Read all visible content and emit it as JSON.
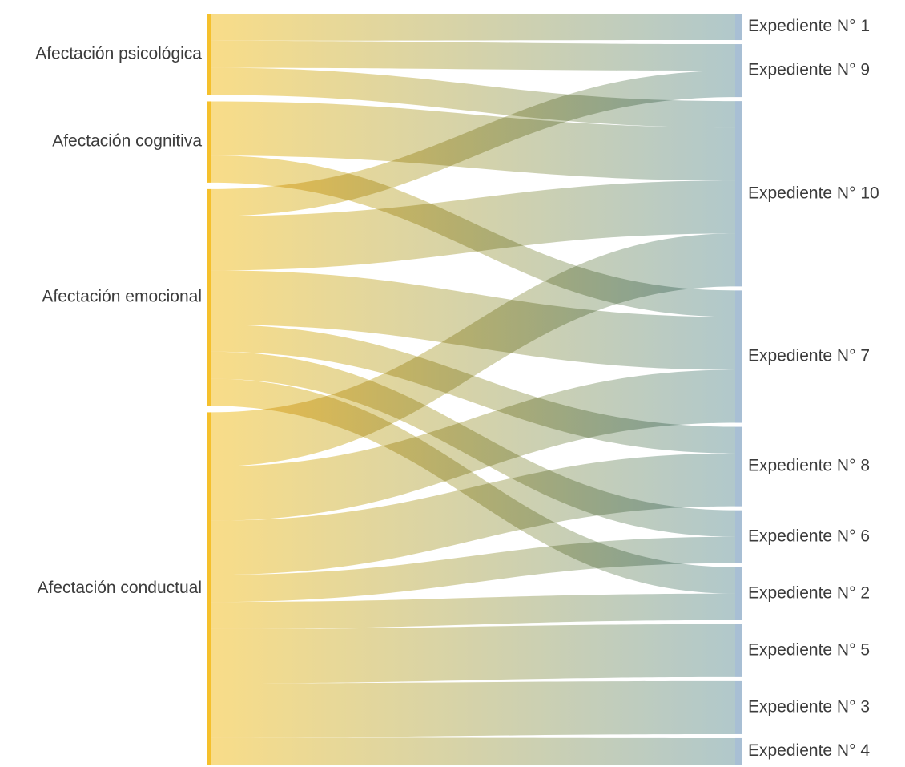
{
  "chart_data": {
    "type": "sankey",
    "title": "",
    "colors": {
      "source": "#f5c02c",
      "link_start": "#f7d56e",
      "link_end": "#9fbcc0",
      "target": "#a8bfd4",
      "label": "#3c3c3c"
    },
    "sources": [
      "Afectación psicológica",
      "Afectación cognitiva",
      "Afectación emocional",
      "Afectación conductual"
    ],
    "targets": [
      "Expediente N° 1",
      "Expediente N° 9",
      "Expediente N° 10",
      "Expediente N° 7",
      "Expediente N° 8",
      "Expediente N° 6",
      "Expediente N° 2",
      "Expediente N° 5",
      "Expediente N° 3",
      "Expediente N° 4"
    ],
    "links": [
      {
        "source": "Afectación psicológica",
        "target": "Expediente N° 1",
        "value": 1
      },
      {
        "source": "Afectación psicológica",
        "target": "Expediente N° 9",
        "value": 1
      },
      {
        "source": "Afectación psicológica",
        "target": "Expediente N° 10",
        "value": 1
      },
      {
        "source": "Afectación cognitiva",
        "target": "Expediente N° 10",
        "value": 2
      },
      {
        "source": "Afectación cognitiva",
        "target": "Expediente N° 7",
        "value": 1
      },
      {
        "source": "Afectación emocional",
        "target": "Expediente N° 9",
        "value": 1
      },
      {
        "source": "Afectación emocional",
        "target": "Expediente N° 10",
        "value": 2
      },
      {
        "source": "Afectación emocional",
        "target": "Expediente N° 7",
        "value": 2
      },
      {
        "source": "Afectación emocional",
        "target": "Expediente N° 8",
        "value": 1
      },
      {
        "source": "Afectación emocional",
        "target": "Expediente N° 6",
        "value": 1
      },
      {
        "source": "Afectación emocional",
        "target": "Expediente N° 2",
        "value": 1
      },
      {
        "source": "Afectación conductual",
        "target": "Expediente N° 10",
        "value": 2
      },
      {
        "source": "Afectación conductual",
        "target": "Expediente N° 7",
        "value": 2
      },
      {
        "source": "Afectación conductual",
        "target": "Expediente N° 8",
        "value": 2
      },
      {
        "source": "Afectación conductual",
        "target": "Expediente N° 6",
        "value": 1
      },
      {
        "source": "Afectación conductual",
        "target": "Expediente N° 2",
        "value": 1
      },
      {
        "source": "Afectación conductual",
        "target": "Expediente N° 5",
        "value": 2
      },
      {
        "source": "Afectación conductual",
        "target": "Expediente N° 3",
        "value": 2
      },
      {
        "source": "Afectación conductual",
        "target": "Expediente N° 4",
        "value": 1
      }
    ]
  }
}
